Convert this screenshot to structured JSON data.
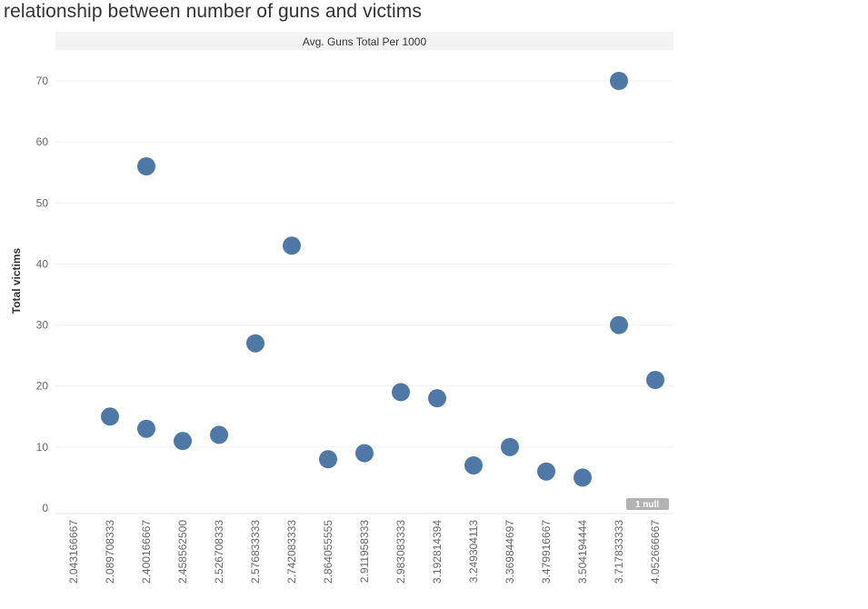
{
  "chart_data": {
    "type": "scatter",
    "title": "relationship between number of guns and victims",
    "column_header": "Avg. Guns Total Per 1000",
    "xlabel": "",
    "ylabel": "Total victims",
    "ylim": [
      0,
      75
    ],
    "yticks": [
      0,
      10,
      20,
      30,
      40,
      50,
      60,
      70
    ],
    "categories": [
      "2.043166667",
      "2.089708333",
      "2.400166667",
      "2.458562500",
      "2.526708333",
      "2.576833333",
      "2.742083333",
      "2.864055555",
      "2.911958333",
      "2.983083333",
      "3.192814394",
      "3.249304113",
      "3.369844697",
      "3.479916667",
      "3.504194444",
      "3.717833333",
      "4.052666667"
    ],
    "points": [
      {
        "x": "2.089708333",
        "y": 15
      },
      {
        "x": "2.400166667",
        "y": 56
      },
      {
        "x": "2.400166667",
        "y": 13
      },
      {
        "x": "2.458562500",
        "y": 11
      },
      {
        "x": "2.526708333",
        "y": 12
      },
      {
        "x": "2.576833333",
        "y": 27
      },
      {
        "x": "2.742083333",
        "y": 43
      },
      {
        "x": "2.864055555",
        "y": 8
      },
      {
        "x": "2.911958333",
        "y": 9
      },
      {
        "x": "2.983083333",
        "y": 19
      },
      {
        "x": "3.192814394",
        "y": 18
      },
      {
        "x": "3.249304113",
        "y": 7
      },
      {
        "x": "3.369844697",
        "y": 10
      },
      {
        "x": "3.479916667",
        "y": 6
      },
      {
        "x": "3.504194444",
        "y": 5
      },
      {
        "x": "3.717833333",
        "y": 70
      },
      {
        "x": "3.717833333",
        "y": 30
      },
      {
        "x": "4.052666667",
        "y": 21
      }
    ],
    "null_indicator": "1 null",
    "grid": true,
    "colors": {
      "mark": "#4e79a7",
      "gridline": "#eeeeee",
      "header_bg": "#f3f3f3",
      "null_badge": "#b3b3b3"
    }
  }
}
